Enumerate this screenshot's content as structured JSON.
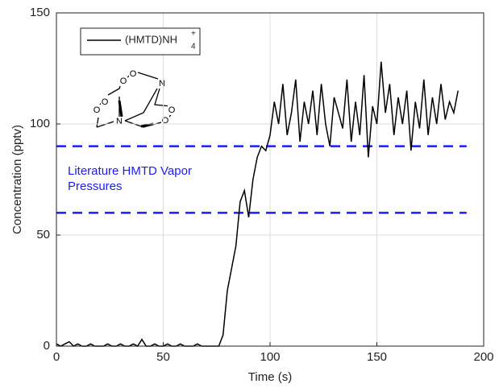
{
  "chart_data": {
    "type": "line",
    "xlabel": "Time (s)",
    "ylabel": "Concentration (pptv)",
    "xlim": [
      0,
      200
    ],
    "xticks": [
      0,
      50,
      100,
      150,
      200
    ],
    "ylim": [
      0,
      150
    ],
    "yticks": [
      0,
      50,
      100,
      150
    ],
    "grid": true,
    "legend": "upper left",
    "x": [
      0,
      2,
      4,
      6,
      8,
      10,
      12,
      14,
      16,
      18,
      20,
      22,
      24,
      26,
      28,
      30,
      32,
      34,
      36,
      38,
      40,
      42,
      44,
      46,
      48,
      50,
      52,
      54,
      56,
      58,
      60,
      62,
      64,
      66,
      68,
      70,
      72,
      74,
      76,
      78,
      80,
      82,
      84,
      86,
      88,
      90,
      92,
      94,
      96,
      98,
      100,
      102,
      104,
      106,
      108,
      110,
      112,
      114,
      116,
      118,
      120,
      122,
      124,
      126,
      128,
      130,
      132,
      134,
      136,
      138,
      140,
      142,
      144,
      146,
      148,
      150,
      152,
      154,
      156,
      158,
      160,
      162,
      164,
      166,
      168,
      170,
      172,
      174,
      176,
      178,
      180,
      182,
      184,
      186,
      188
    ],
    "series": [
      {
        "name": "(HMTD)NH",
        "name_sub": "4",
        "name_sup": "+",
        "color": "#000000",
        "values": [
          1,
          0,
          1,
          2,
          0,
          1,
          0,
          0,
          1,
          0,
          0,
          0,
          1,
          0,
          0,
          1,
          0,
          0,
          1,
          0,
          3,
          0,
          0,
          1,
          0,
          0,
          1,
          0,
          0,
          1,
          0,
          0,
          0,
          1,
          0,
          0,
          0,
          0,
          0,
          5,
          25,
          35,
          45,
          65,
          70,
          58,
          75,
          85,
          90,
          88,
          95,
          110,
          100,
          118,
          95,
          105,
          120,
          92,
          110,
          100,
          115,
          95,
          118,
          100,
          90,
          112,
          105,
          98,
          120,
          92,
          110,
          95,
          122,
          85,
          108,
          100,
          128,
          105,
          118,
          95,
          112,
          100,
          115,
          88,
          110,
          98,
          120,
          95,
          112,
          100,
          118,
          102,
          110,
          105,
          115
        ]
      }
    ],
    "hlines": [
      {
        "value": 90,
        "color": "#1a1aff"
      },
      {
        "value": 60,
        "color": "#1a1aff"
      }
    ],
    "annotation": [
      "Literature HMTD Vapor",
      "Pressures"
    ],
    "annotation_color": "#1a1aff",
    "molecule_atoms": [
      "O",
      "O",
      "N",
      "O",
      "O",
      "N",
      "O",
      "O"
    ]
  }
}
